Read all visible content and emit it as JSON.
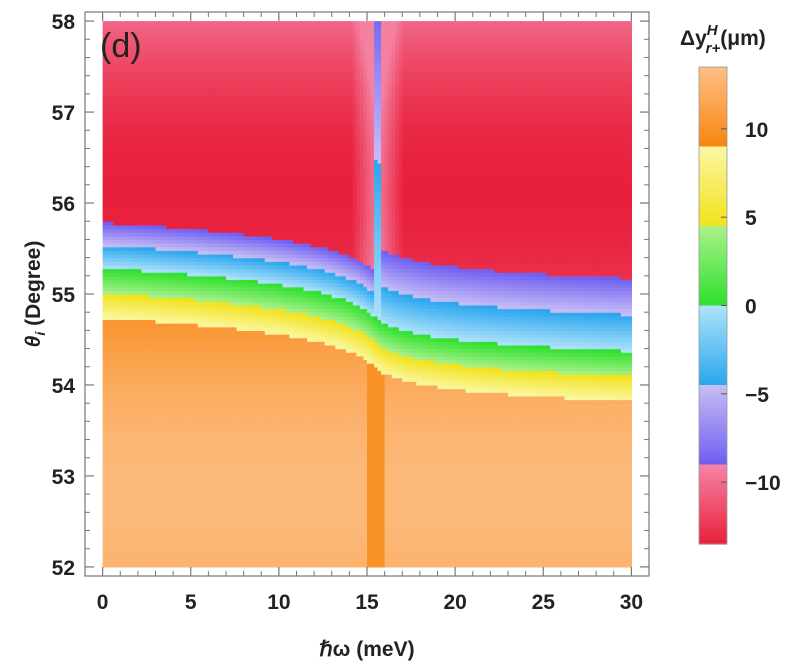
{
  "chart_data": {
    "type": "heatmap",
    "panel_label": "(d)",
    "xlabel": "ℏω (meV)",
    "ylabel_symbol": "θ",
    "ylabel_sub": "i",
    "ylabel_rest": " (Degree)",
    "colorbar_title": {
      "prefix": "Δy",
      "sup": "H",
      "sub": "r+",
      "unit": "(μm)"
    },
    "xlim": [
      -1,
      31
    ],
    "ylim": [
      51.9,
      58.1
    ],
    "xticks": [
      0,
      5,
      10,
      15,
      20,
      25,
      30
    ],
    "yticks": [
      52,
      53,
      54,
      55,
      56,
      57,
      58
    ],
    "x_tick_labels": [
      "0",
      "5",
      "10",
      "15",
      "20",
      "25",
      "30"
    ],
    "y_tick_labels": [
      "52",
      "53",
      "54",
      "55",
      "56",
      "57",
      "58"
    ],
    "data_x_range": [
      0,
      30
    ],
    "data_y_range": [
      52,
      58
    ],
    "resonance_energy": 15.6,
    "colorbar_range": [
      -13.5,
      13.5
    ],
    "colorbar_ticks": [
      10,
      5,
      0,
      -5,
      -10
    ],
    "colorbar_tick_labels": [
      "10",
      "5",
      "0",
      "−5",
      "−10"
    ],
    "color_bands": [
      {
        "from": -13.5,
        "to": -9,
        "colors": [
          "#e8203c",
          "#f585a5"
        ]
      },
      {
        "from": -9,
        "to": -4.5,
        "colors": [
          "#6e5ef2",
          "#c7bef5"
        ]
      },
      {
        "from": -4.5,
        "to": 0,
        "colors": [
          "#2aa6ee",
          "#aee2fb"
        ]
      },
      {
        "from": 0,
        "to": 4.5,
        "colors": [
          "#2ee02e",
          "#a9f18a"
        ]
      },
      {
        "from": 4.5,
        "to": 9,
        "colors": [
          "#f1e21a",
          "#fbf7a2"
        ]
      },
      {
        "from": 9,
        "to": 13.5,
        "colors": [
          "#f8860e",
          "#fdbf87"
        ]
      }
    ],
    "field_values": {
      "upper_pink_max": -9.2,
      "upper_red_min": -13.5,
      "red_peak_theta": 56.1,
      "lower_orange_max": 13.0,
      "lower_orange_min": 10.0
    }
  }
}
